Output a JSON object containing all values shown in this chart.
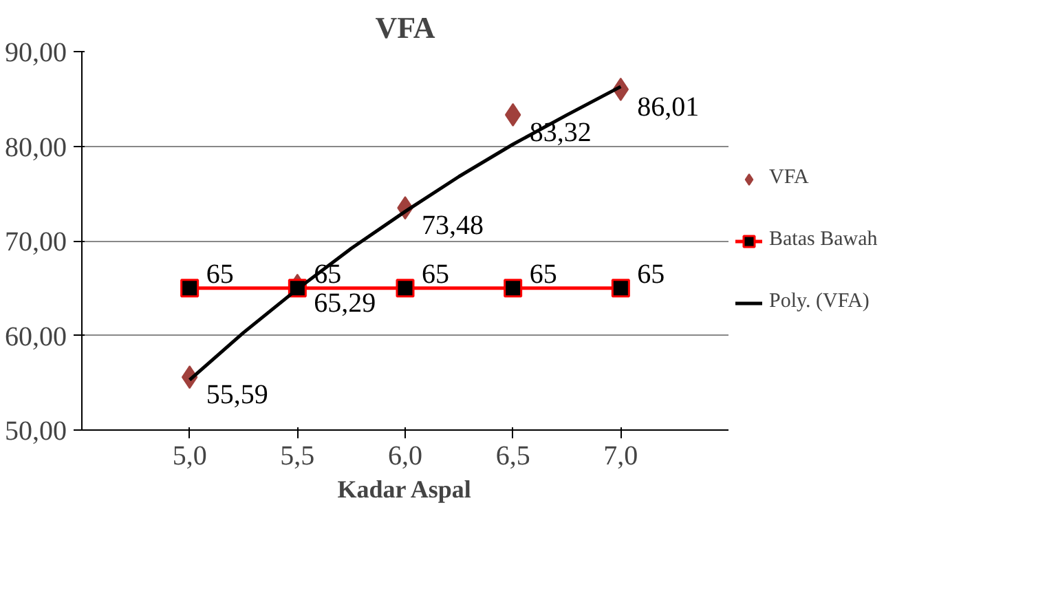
{
  "chart_data": {
    "type": "scatter",
    "title": "VFA",
    "xlabel": "Kadar Aspal",
    "x": [
      5.0,
      5.5,
      6.0,
      6.5,
      7.0
    ],
    "xlim": [
      4.5,
      7.5
    ],
    "xticks": [
      {
        "value": 5.0,
        "label": "5,0"
      },
      {
        "value": 5.5,
        "label": "5,5"
      },
      {
        "value": 6.0,
        "label": "6,0"
      },
      {
        "value": 6.5,
        "label": "6,5"
      },
      {
        "value": 7.0,
        "label": "7,0"
      }
    ],
    "ylim": [
      50,
      90
    ],
    "yticks": [
      {
        "value": 50,
        "label": "50,00"
      },
      {
        "value": 60,
        "label": "60,00"
      },
      {
        "value": 70,
        "label": "70,00"
      },
      {
        "value": 80,
        "label": "80,00"
      },
      {
        "value": 90,
        "label": "90,00"
      }
    ],
    "grid": "y",
    "legend": "right",
    "series": [
      {
        "name": "VFA",
        "marker": "diamond",
        "color": "#a0403c",
        "values": [
          55.59,
          65.29,
          73.48,
          83.32,
          86.01
        ],
        "value_labels": [
          "55,59",
          "65,29",
          "73,48",
          "83,32",
          "86,01"
        ]
      },
      {
        "name": "Batas Bawah",
        "type": "line",
        "marker": "square",
        "color": "#ff0000",
        "values": [
          65,
          65,
          65,
          65,
          65
        ],
        "value_labels": [
          "65",
          "65",
          "65",
          "65",
          "65"
        ]
      },
      {
        "name": "Poly. (VFA)",
        "type": "line",
        "marker": "none",
        "color": "#000000",
        "x": [
          5.0,
          5.25,
          5.5,
          5.75,
          6.0,
          6.25,
          6.5,
          6.75,
          7.0
        ],
        "values": [
          55.3,
          60.3,
          64.9,
          69.2,
          73.1,
          76.8,
          80.2,
          83.3,
          86.3
        ]
      }
    ]
  }
}
